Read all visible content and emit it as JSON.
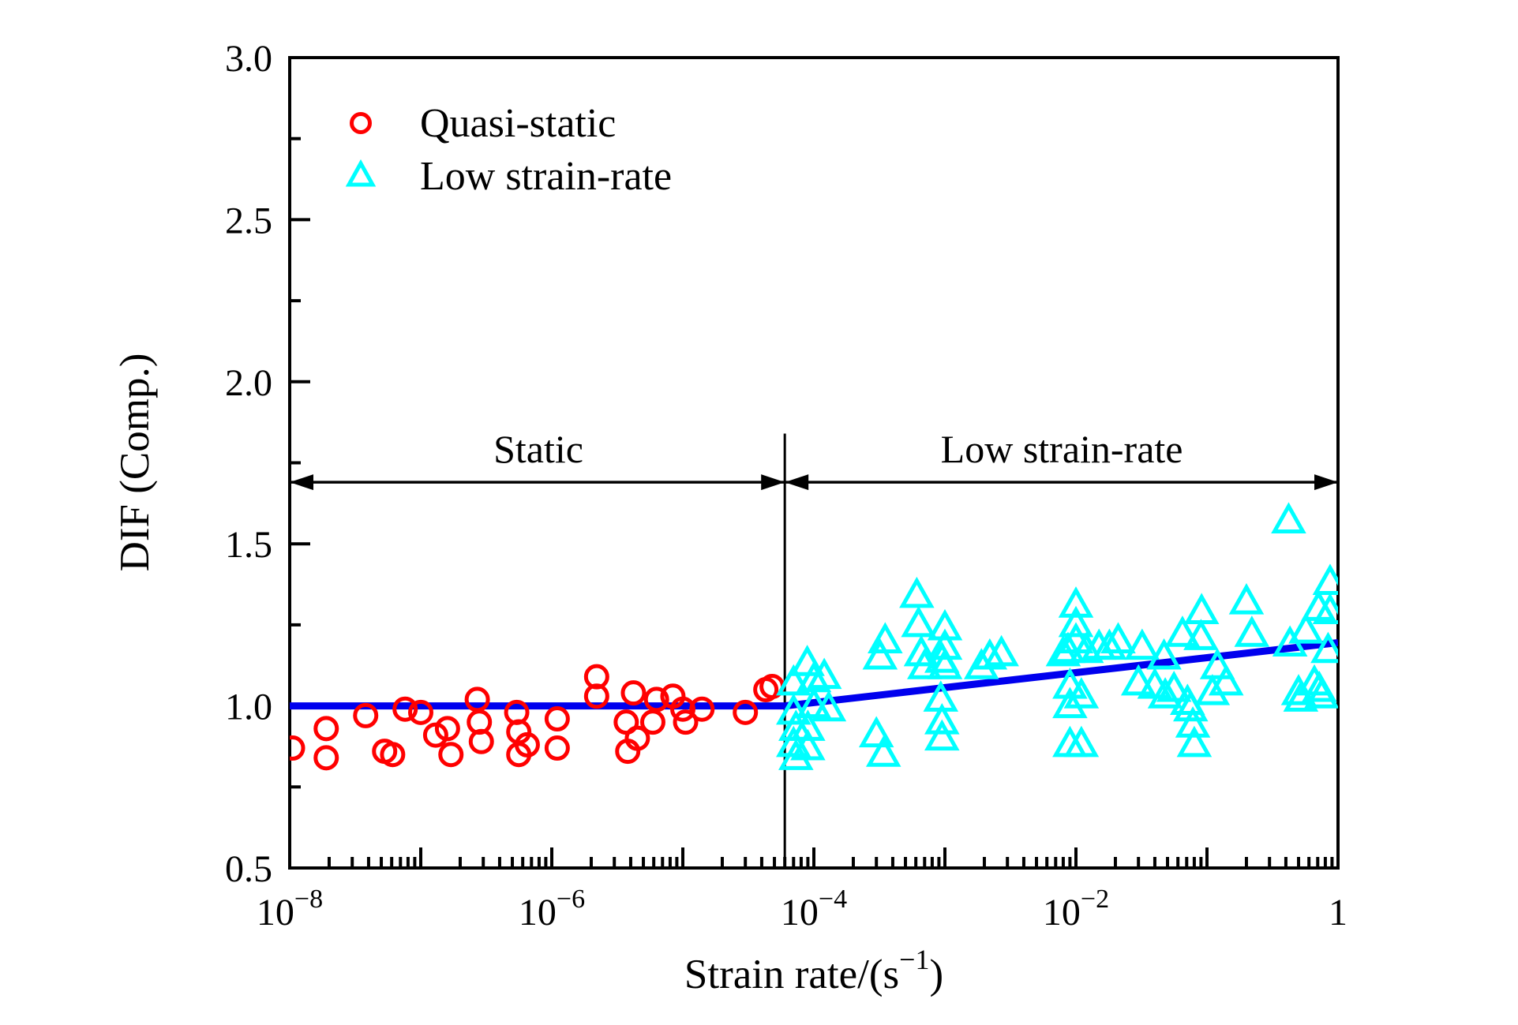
{
  "chart_data": {
    "type": "scatter",
    "title": "",
    "xlabel": {
      "base": "Strain rate/(s",
      "sup": "−1",
      "after": ")"
    },
    "ylabel": "DIF (Comp.)",
    "x_scale": "log",
    "x_range": [
      1e-08,
      1
    ],
    "y_range": [
      0.5,
      3.0
    ],
    "grid": false,
    "x_major_tick_exponents": [
      -8,
      -7,
      -6,
      -5,
      -4,
      -3,
      -2,
      -1,
      0
    ],
    "x_labeled_ticks": [
      {
        "exp": -8,
        "base": "10",
        "sup": "−8"
      },
      {
        "exp": -6,
        "base": "10",
        "sup": "−6"
      },
      {
        "exp": -4,
        "base": "10",
        "sup": "−4"
      },
      {
        "exp": -2,
        "base": "10",
        "sup": "−2"
      },
      {
        "exp": 0,
        "base": "1",
        "sup": ""
      }
    ],
    "y_major_ticks": [
      {
        "v": 0.5,
        "label": "0.5"
      },
      {
        "v": 1.0,
        "label": "1.0"
      },
      {
        "v": 1.5,
        "label": "1.5"
      },
      {
        "v": 2.0,
        "label": "2.0"
      },
      {
        "v": 2.5,
        "label": "2.5"
      },
      {
        "v": 3.0,
        "label": "3.0"
      }
    ],
    "y_minor_ticks": [
      0.75,
      1.25,
      1.75,
      2.25,
      2.75
    ],
    "legend": {
      "position": "top-left",
      "entries": [
        {
          "label": "Quasi-static",
          "marker": "circle",
          "color": "#FF0000"
        },
        {
          "label": "Low strain-rate",
          "marker": "triangle",
          "color": "#00FFFF"
        }
      ]
    },
    "annotations": {
      "divider_x": 6e-05,
      "divider_y_top": 1.84,
      "arrow_y": 1.69,
      "label_y": 1.79,
      "regions": [
        {
          "label": "Static",
          "x_from": 1e-08,
          "x_to": 6e-05,
          "label_x": 7.9e-07
        },
        {
          "label": "Low strain-rate",
          "x_from": 6e-05,
          "x_to": 1,
          "label_x": 0.0078
        }
      ]
    },
    "fit_line": {
      "name": "DIF model curve",
      "color": "#0000EE",
      "width": 9,
      "points": [
        [
          1e-08,
          1.0
        ],
        [
          6e-05,
          1.0
        ],
        [
          1,
          1.195
        ]
      ]
    },
    "series": [
      {
        "name": "Quasi-static",
        "marker": "circle",
        "color": "#FF0000",
        "points": [
          [
            1.05e-08,
            0.87
          ],
          [
            1.9e-08,
            0.93
          ],
          [
            1.9e-08,
            0.84
          ],
          [
            3.8e-08,
            0.97
          ],
          [
            5.3e-08,
            0.86
          ],
          [
            6.1e-08,
            0.85
          ],
          [
            7.6e-08,
            0.99
          ],
          [
            1e-07,
            0.98
          ],
          [
            1.3e-07,
            0.91
          ],
          [
            1.6e-07,
            0.93
          ],
          [
            1.7e-07,
            0.85
          ],
          [
            2.7e-07,
            1.02
          ],
          [
            2.8e-07,
            0.95
          ],
          [
            2.9e-07,
            0.89
          ],
          [
            5.4e-07,
            0.98
          ],
          [
            5.6e-07,
            0.92
          ],
          [
            5.6e-07,
            0.85
          ],
          [
            6.5e-07,
            0.88
          ],
          [
            1.1e-06,
            0.96
          ],
          [
            1.1e-06,
            0.87
          ],
          [
            2.2e-06,
            1.09
          ],
          [
            2.2e-06,
            1.03
          ],
          [
            4.2e-06,
            1.04
          ],
          [
            3.7e-06,
            0.95
          ],
          [
            4.5e-06,
            0.9
          ],
          [
            3.8e-06,
            0.86
          ],
          [
            5.9e-06,
            0.95
          ],
          [
            6.3e-06,
            1.02
          ],
          [
            8.4e-06,
            1.03
          ],
          [
            1e-05,
            0.99
          ],
          [
            1.05e-05,
            0.95
          ],
          [
            1.4e-05,
            0.99
          ],
          [
            3e-05,
            0.98
          ],
          [
            4.3e-05,
            1.05
          ],
          [
            4.8e-05,
            1.06
          ]
        ]
      },
      {
        "name": "Low strain-rate",
        "marker": "triangle",
        "color": "#00FFFF",
        "points": [
          [
            7e-05,
            1.07
          ],
          [
            7e-05,
            0.98
          ],
          [
            7.3e-05,
            0.93
          ],
          [
            7e-05,
            0.88
          ],
          [
            7.3e-05,
            0.84
          ],
          [
            8.9e-05,
            1.13
          ],
          [
            0.0001,
            1.08
          ],
          [
            0.00012,
            1.09
          ],
          [
            0.0001,
            1.0
          ],
          [
            0.00013,
            0.99
          ],
          [
            9e-05,
            0.93
          ],
          [
            9e-05,
            0.87
          ],
          [
            0.00032,
            1.15
          ],
          [
            0.00035,
            1.2
          ],
          [
            0.0003,
            0.91
          ],
          [
            0.00034,
            0.85
          ],
          [
            0.00061,
            1.34
          ],
          [
            0.00063,
            1.25
          ],
          [
            0.00066,
            1.16
          ],
          [
            0.0007,
            1.12
          ],
          [
            0.00093,
            1.02
          ],
          [
            0.00095,
            1.14
          ],
          [
            0.00095,
            0.95
          ],
          [
            0.00095,
            0.9
          ],
          [
            0.001,
            1.24
          ],
          [
            0.001,
            1.18
          ],
          [
            0.001,
            1.12
          ],
          [
            0.0019,
            1.12
          ],
          [
            0.0022,
            1.15
          ],
          [
            0.0027,
            1.16
          ],
          [
            0.008,
            1.16
          ],
          [
            0.0087,
            1.17
          ],
          [
            0.009,
            1.06
          ],
          [
            0.009,
            1.0
          ],
          [
            0.009,
            0.88
          ],
          [
            0.01,
            1.31
          ],
          [
            0.01,
            1.25
          ],
          [
            0.01,
            1.2
          ],
          [
            0.011,
            1.03
          ],
          [
            0.011,
            0.88
          ],
          [
            0.012,
            1.17
          ],
          [
            0.018,
            1.18
          ],
          [
            0.015,
            1.18
          ],
          [
            0.021,
            1.2
          ],
          [
            0.032,
            1.18
          ],
          [
            0.047,
            1.15
          ],
          [
            0.03,
            1.07
          ],
          [
            0.04,
            1.06
          ],
          [
            0.056,
            1.05
          ],
          [
            0.048,
            1.03
          ],
          [
            0.065,
            1.22
          ],
          [
            0.09,
            1.21
          ],
          [
            0.091,
            1.29
          ],
          [
            0.071,
            1.01
          ],
          [
            0.075,
            0.99
          ],
          [
            0.078,
            0.94
          ],
          [
            0.08,
            0.88
          ],
          [
            0.11,
            1.04
          ],
          [
            0.12,
            1.12
          ],
          [
            0.14,
            1.07
          ],
          [
            0.2,
            1.32
          ],
          [
            0.22,
            1.22
          ],
          [
            0.42,
            1.57
          ],
          [
            0.43,
            1.19
          ],
          [
            0.5,
            1.04
          ],
          [
            0.52,
            1.02
          ],
          [
            0.57,
            1.23
          ],
          [
            0.66,
            1.07
          ],
          [
            0.72,
            1.05
          ],
          [
            0.75,
            1.03
          ],
          [
            0.84,
            1.17
          ],
          [
            0.87,
            1.38
          ],
          [
            0.87,
            1.29
          ],
          [
            0.71,
            1.3
          ]
        ]
      }
    ],
    "style": {
      "axis_color": "#000000",
      "border_width": 4,
      "major_tick_len": 26,
      "minor_tick_len": 14,
      "tick_width": 4,
      "marker_stroke": 5,
      "circle_radius": 13.5,
      "tick_font": 48,
      "sup_font": 34,
      "title_font": 53,
      "legend_font": 52,
      "region_font": 50
    }
  }
}
